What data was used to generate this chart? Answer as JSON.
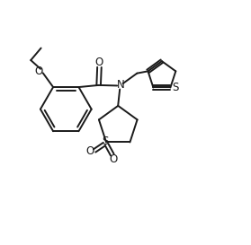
{
  "background_color": "#ffffff",
  "line_color": "#1a1a1a",
  "line_width": 1.4,
  "figsize": [
    2.79,
    2.73
  ],
  "dpi": 100,
  "xlim": [
    0,
    10
  ],
  "ylim": [
    0,
    10
  ]
}
